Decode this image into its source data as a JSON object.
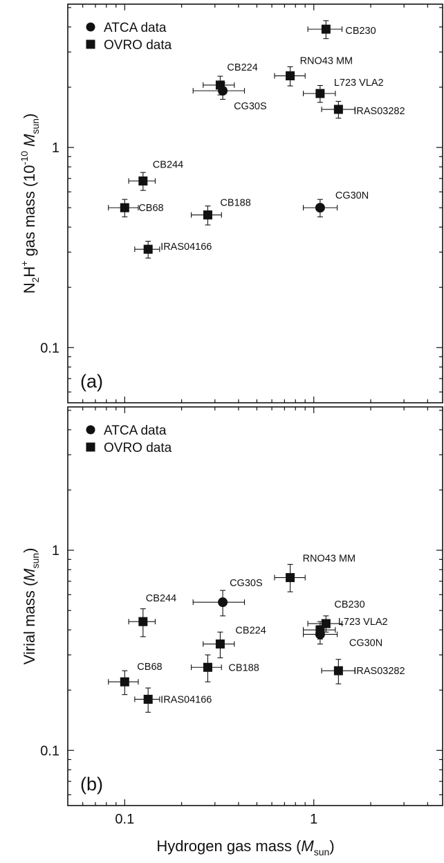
{
  "figure": {
    "x_axis_title": "Hydrogen gas mass (",
    "x_axis_unit_italic": "M",
    "x_axis_unit_sub": "sun",
    "x_axis_close": ")"
  },
  "chart_data": [
    {
      "type": "scatter",
      "panel_tag": "(a)",
      "ylabel": {
        "n": "N",
        "sub2": "2",
        "h": "H",
        "sup": "+",
        "rest": " gas mass (10",
        "exp": "-10",
        "space": " ",
        "unit_italic": "M",
        "unit_sub": "sun",
        "close": ")"
      },
      "x_scale": "log",
      "y_scale": "log",
      "xlim": [
        0.05,
        4.8
      ],
      "ylim": [
        0.053,
        5.2
      ],
      "x_tick_labels": [
        "0.1",
        "1"
      ],
      "x_ticks": [
        0.1,
        1
      ],
      "y_tick_labels": [
        "0.1",
        "1"
      ],
      "y_ticks": [
        0.1,
        1
      ],
      "legend": [
        {
          "label": "ATCA data",
          "marker": "circle"
        },
        {
          "label": "OVRO data",
          "marker": "square"
        }
      ],
      "points": [
        {
          "name": "CB230",
          "x": 1.16,
          "y": 3.9,
          "xerr": [
            0.23,
            0.25
          ],
          "yerr": [
            0.4,
            0.4
          ],
          "marker": "square",
          "label_dx": 28,
          "label_dy": 2
        },
        {
          "name": "RNO43 MM",
          "x": 0.75,
          "y": 2.28,
          "xerr": [
            0.13,
            0.15
          ],
          "yerr": [
            0.25,
            0.25
          ],
          "marker": "square",
          "label_dx": 14,
          "label_dy": -22
        },
        {
          "name": "CB224",
          "x": 0.32,
          "y": 2.05,
          "xerr": [
            0.06,
            0.06
          ],
          "yerr": [
            0.22,
            0.22
          ],
          "marker": "square",
          "label_dx": 10,
          "label_dy": -26
        },
        {
          "name": "CG30S",
          "x": 0.33,
          "y": 1.92,
          "xerr": [
            0.1,
            0.1
          ],
          "yerr": [
            0.18,
            0.18
          ],
          "marker": "circle",
          "label_dx": 16,
          "label_dy": 22
        },
        {
          "name": "L723 VLA2",
          "x": 1.08,
          "y": 1.86,
          "xerr": [
            0.2,
            0.22
          ],
          "yerr": [
            0.18,
            0.18
          ],
          "marker": "square",
          "label_dx": 20,
          "label_dy": -16
        },
        {
          "name": "IRAS03282",
          "x": 1.35,
          "y": 1.55,
          "xerr": [
            0.25,
            0.3
          ],
          "yerr": [
            0.15,
            0.15
          ],
          "marker": "square",
          "label_dx": 22,
          "label_dy": 2
        },
        {
          "name": "CB244",
          "x": 0.125,
          "y": 0.68,
          "xerr": [
            0.02,
            0.02
          ],
          "yerr": [
            0.07,
            0.07
          ],
          "marker": "square",
          "label_dx": 14,
          "label_dy": -24
        },
        {
          "name": "CB68",
          "x": 0.1,
          "y": 0.5,
          "xerr": [
            0.018,
            0.018
          ],
          "yerr": [
            0.05,
            0.05
          ],
          "marker": "square",
          "label_dx": 20,
          "label_dy": 0
        },
        {
          "name": "CB188",
          "x": 0.275,
          "y": 0.46,
          "xerr": [
            0.05,
            0.05
          ],
          "yerr": [
            0.05,
            0.05
          ],
          "marker": "square",
          "label_dx": 18,
          "label_dy": -18
        },
        {
          "name": "CG30N",
          "x": 1.08,
          "y": 0.5,
          "xerr": [
            0.2,
            0.25
          ],
          "yerr": [
            0.05,
            0.05
          ],
          "marker": "circle",
          "label_dx": 22,
          "label_dy": -18
        },
        {
          "name": "IRAS04166",
          "x": 0.133,
          "y": 0.31,
          "xerr": [
            0.02,
            0.02
          ],
          "yerr": [
            0.03,
            0.03
          ],
          "marker": "square",
          "label_dx": 18,
          "label_dy": -4
        }
      ]
    },
    {
      "type": "scatter",
      "panel_tag": "(b)",
      "ylabel": {
        "n": "Virial mass (",
        "sub2": "",
        "h": "",
        "sup": "",
        "rest": "",
        "exp": "",
        "space": "",
        "unit_italic": "M",
        "unit_sub": "sun",
        "close": ")"
      },
      "x_scale": "log",
      "y_scale": "log",
      "xlim": [
        0.05,
        4.8
      ],
      "ylim": [
        0.053,
        5.2
      ],
      "x_tick_labels": [
        "0.1",
        "1"
      ],
      "x_ticks": [
        0.1,
        1
      ],
      "y_tick_labels": [
        "0.1",
        "1"
      ],
      "y_ticks": [
        0.1,
        1
      ],
      "legend": [
        {
          "label": "ATCA data",
          "marker": "circle"
        },
        {
          "label": "OVRO data",
          "marker": "square"
        }
      ],
      "points": [
        {
          "name": "RNO43 MM",
          "x": 0.75,
          "y": 0.73,
          "xerr": [
            0.13,
            0.15
          ],
          "yerr": [
            0.11,
            0.12
          ],
          "marker": "square",
          "label_dx": 18,
          "label_dy": -28
        },
        {
          "name": "CG30S",
          "x": 0.33,
          "y": 0.55,
          "xerr": [
            0.1,
            0.1
          ],
          "yerr": [
            0.08,
            0.08
          ],
          "marker": "circle",
          "label_dx": 10,
          "label_dy": -28
        },
        {
          "name": "CB244",
          "x": 0.125,
          "y": 0.44,
          "xerr": [
            0.02,
            0.02
          ],
          "yerr": [
            0.07,
            0.07
          ],
          "marker": "square",
          "label_dx": 4,
          "label_dy": -34
        },
        {
          "name": "CB230",
          "x": 1.16,
          "y": 0.43,
          "xerr": [
            0.23,
            0.25
          ],
          "yerr": [
            0.04,
            0.04
          ],
          "marker": "square",
          "label_dx": 12,
          "label_dy": -28
        },
        {
          "name": "L723 VLA2",
          "x": 1.08,
          "y": 0.4,
          "xerr": [
            0.2,
            0.22
          ],
          "yerr": [
            0.04,
            0.04
          ],
          "marker": "square",
          "label_dx": 26,
          "label_dy": -12
        },
        {
          "name": "CG30N",
          "x": 1.08,
          "y": 0.38,
          "xerr": [
            0.2,
            0.25
          ],
          "yerr": [
            0.04,
            0.04
          ],
          "marker": "circle",
          "label_dx": 42,
          "label_dy": 12
        },
        {
          "name": "CB224",
          "x": 0.32,
          "y": 0.34,
          "xerr": [
            0.06,
            0.06
          ],
          "yerr": [
            0.05,
            0.05
          ],
          "marker": "square",
          "label_dx": 22,
          "label_dy": -20
        },
        {
          "name": "CB188",
          "x": 0.275,
          "y": 0.26,
          "xerr": [
            0.05,
            0.05
          ],
          "yerr": [
            0.04,
            0.04
          ],
          "marker": "square",
          "label_dx": 30,
          "label_dy": 0
        },
        {
          "name": "IRAS03282",
          "x": 1.35,
          "y": 0.25,
          "xerr": [
            0.25,
            0.3
          ],
          "yerr": [
            0.035,
            0.035
          ],
          "marker": "square",
          "label_dx": 22,
          "label_dy": 0
        },
        {
          "name": "CB68",
          "x": 0.1,
          "y": 0.22,
          "xerr": [
            0.018,
            0.018
          ],
          "yerr": [
            0.03,
            0.03
          ],
          "marker": "square",
          "label_dx": 18,
          "label_dy": -22
        },
        {
          "name": "IRAS04166",
          "x": 0.133,
          "y": 0.18,
          "xerr": [
            0.02,
            0.02
          ],
          "yerr": [
            0.025,
            0.025
          ],
          "marker": "square",
          "label_dx": 18,
          "label_dy": 0
        }
      ]
    }
  ]
}
